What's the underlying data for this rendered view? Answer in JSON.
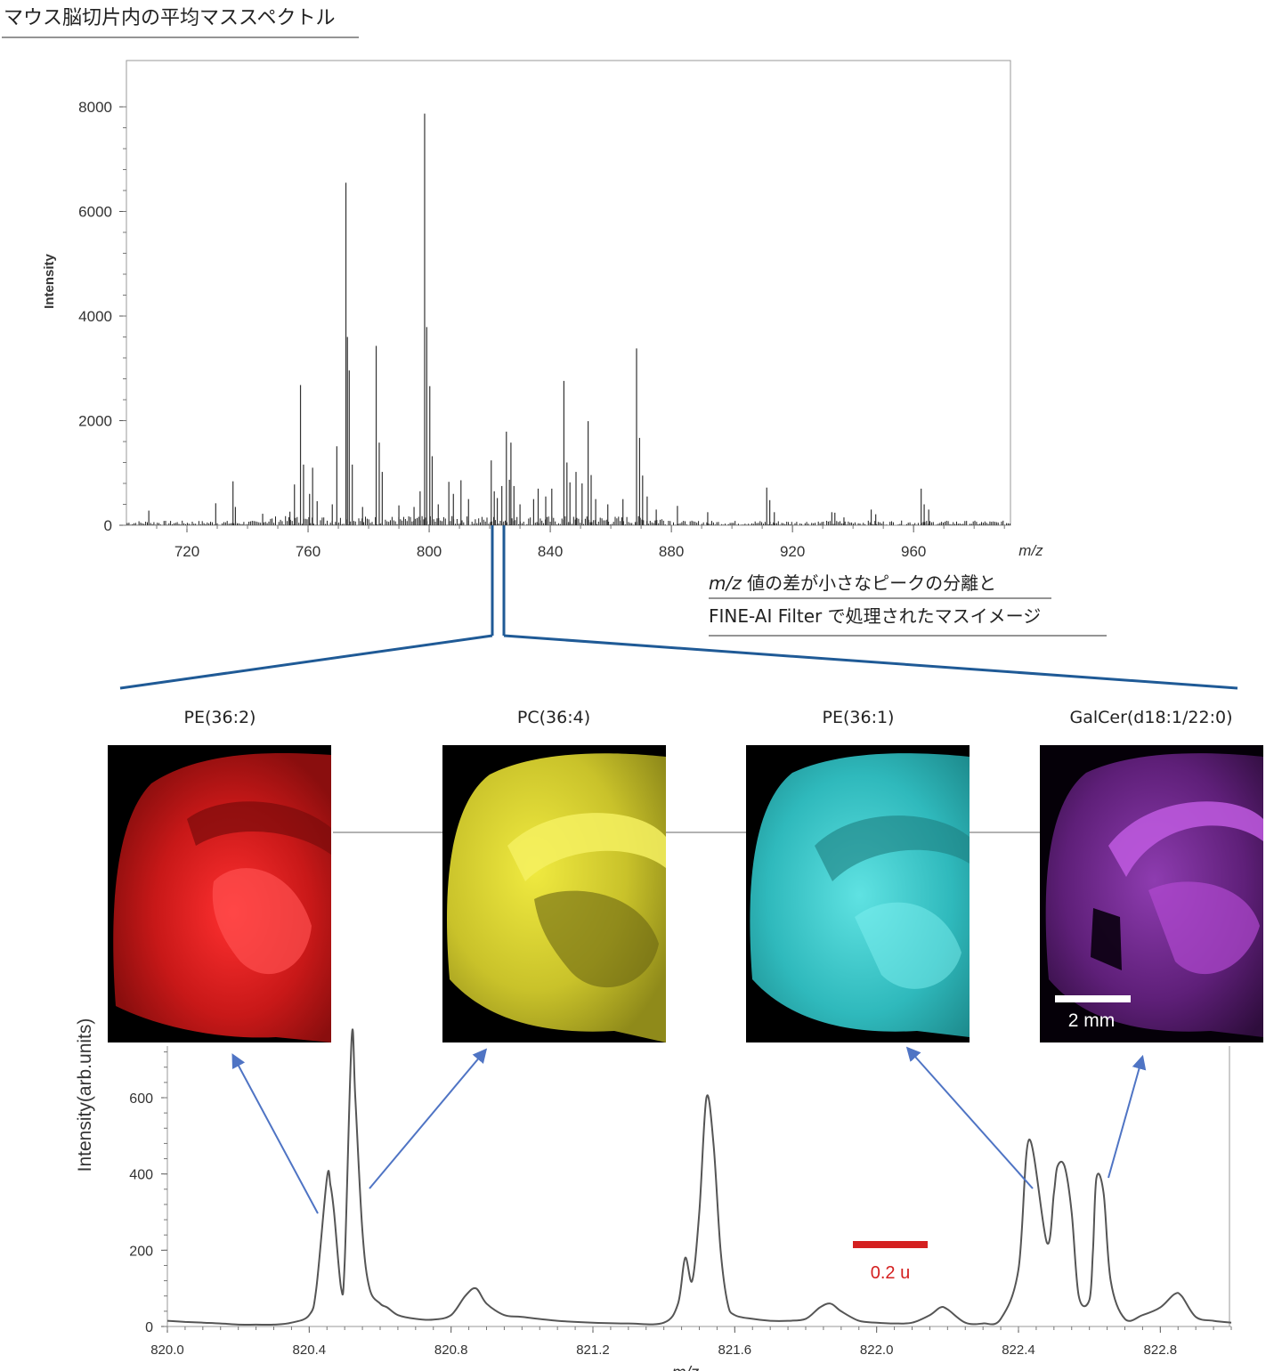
{
  "header": {
    "title": "マウス脳切片内の平均マススペクトル"
  },
  "note": {
    "line1_mz": "m/z",
    "line1_rest": " 値の差が小さなピークの分離と",
    "line2": "FINE-AI Filter で処理されたマスイメージ"
  },
  "chart_data": [
    {
      "type": "line",
      "ylabel": "Intensity",
      "xlabel": "m/z",
      "xlim": [
        700,
        992
      ],
      "ylim": [
        0,
        8000
      ],
      "xticks": [
        {
          "value": 720,
          "label": "720"
        },
        {
          "value": 760,
          "label": "760"
        },
        {
          "value": 800,
          "label": "800"
        },
        {
          "value": 840,
          "label": "840"
        },
        {
          "value": 880,
          "label": "880"
        },
        {
          "value": 920,
          "label": "920"
        },
        {
          "value": 960,
          "label": "960"
        }
      ],
      "yticks": [
        {
          "value": 0,
          "label": "0"
        },
        {
          "value": 2000,
          "label": "2000"
        },
        {
          "value": 4000,
          "label": "4000"
        },
        {
          "value": 6000,
          "label": "6000"
        },
        {
          "value": 8000,
          "label": "8000"
        }
      ],
      "peaks": [
        [
          707.4,
          280
        ],
        [
          729.5,
          420
        ],
        [
          735.2,
          840
        ],
        [
          736.0,
          350
        ],
        [
          745.0,
          220
        ],
        [
          754.0,
          260
        ],
        [
          755.5,
          780
        ],
        [
          757.5,
          2680
        ],
        [
          758.5,
          1160
        ],
        [
          760.5,
          600
        ],
        [
          761.5,
          1100
        ],
        [
          763.0,
          460
        ],
        [
          768.0,
          400
        ],
        [
          769.5,
          1510
        ],
        [
          772.5,
          6550
        ],
        [
          773.0,
          3600
        ],
        [
          773.6,
          2960
        ],
        [
          774.6,
          1160
        ],
        [
          778.0,
          350
        ],
        [
          782.5,
          3430
        ],
        [
          783.5,
          1580
        ],
        [
          784.5,
          1020
        ],
        [
          790.0,
          380
        ],
        [
          795.0,
          350
        ],
        [
          797.0,
          650
        ],
        [
          798.5,
          7870
        ],
        [
          799.2,
          3790
        ],
        [
          800.2,
          2660
        ],
        [
          801.0,
          1320
        ],
        [
          803.0,
          400
        ],
        [
          806.5,
          830
        ],
        [
          808.0,
          600
        ],
        [
          810.5,
          860
        ],
        [
          813.0,
          500
        ],
        [
          820.5,
          1240
        ],
        [
          821.5,
          650
        ],
        [
          822.5,
          520
        ],
        [
          824.0,
          750
        ],
        [
          825.5,
          1790
        ],
        [
          826.5,
          870
        ],
        [
          827.0,
          1580
        ],
        [
          828.0,
          750
        ],
        [
          830.0,
          400
        ],
        [
          834.5,
          500
        ],
        [
          836.0,
          700
        ],
        [
          838.5,
          550
        ],
        [
          840.5,
          700
        ],
        [
          844.5,
          2760
        ],
        [
          845.5,
          1200
        ],
        [
          846.5,
          820
        ],
        [
          848.5,
          1020
        ],
        [
          850.5,
          800
        ],
        [
          852.5,
          1990
        ],
        [
          853.5,
          960
        ],
        [
          855.0,
          500
        ],
        [
          859.0,
          400
        ],
        [
          864.0,
          500
        ],
        [
          868.5,
          3380
        ],
        [
          869.5,
          1670
        ],
        [
          870.5,
          950
        ],
        [
          872.0,
          550
        ],
        [
          875.0,
          300
        ],
        [
          882.0,
          370
        ],
        [
          892.0,
          250
        ],
        [
          911.5,
          720
        ],
        [
          912.5,
          480
        ],
        [
          914.0,
          250
        ],
        [
          933.0,
          250
        ],
        [
          934.0,
          240
        ],
        [
          937.0,
          150
        ],
        [
          946.0,
          300
        ],
        [
          947.5,
          210
        ],
        [
          962.5,
          700
        ],
        [
          963.5,
          400
        ],
        [
          965.0,
          300
        ]
      ]
    },
    {
      "type": "line",
      "ylabel": "Intensity(arb.units)",
      "xlabel": "m/z",
      "xlim": [
        820.0,
        823.0
      ],
      "ylim": [
        0,
        760
      ],
      "xticks": [
        {
          "value": 820.0,
          "label": "820.0"
        },
        {
          "value": 820.4,
          "label": "820.4"
        },
        {
          "value": 820.8,
          "label": "820.8"
        },
        {
          "value": 821.2,
          "label": "821.2"
        },
        {
          "value": 821.6,
          "label": "821.6"
        },
        {
          "value": 822.0,
          "label": "822.0"
        },
        {
          "value": 822.4,
          "label": "822.4"
        },
        {
          "value": 822.8,
          "label": "822.8"
        }
      ],
      "yticks": [
        {
          "value": 0,
          "label": "0"
        },
        {
          "value": 200,
          "label": "200"
        },
        {
          "value": 400,
          "label": "400"
        },
        {
          "value": 600,
          "label": "600"
        }
      ],
      "x": [
        820.0,
        820.05,
        820.1,
        820.15,
        820.2,
        820.25,
        820.3,
        820.35,
        820.4,
        820.42,
        820.45,
        820.46,
        820.47,
        820.49,
        820.5,
        820.52,
        820.53,
        820.55,
        820.57,
        820.6,
        820.62,
        820.65,
        820.7,
        820.75,
        820.8,
        820.84,
        820.87,
        820.9,
        820.95,
        821.0,
        821.1,
        821.2,
        821.3,
        821.4,
        821.44,
        821.46,
        821.48,
        821.5,
        821.52,
        821.54,
        821.56,
        821.58,
        821.6,
        821.65,
        821.7,
        821.75,
        821.8,
        821.84,
        821.87,
        821.9,
        821.95,
        822.0,
        822.05,
        822.1,
        822.15,
        822.18,
        822.2,
        822.25,
        822.3,
        822.35,
        822.4,
        822.43,
        822.48,
        822.5,
        822.51,
        822.53,
        822.55,
        822.57,
        822.6,
        822.61,
        822.62,
        822.64,
        822.66,
        822.7,
        822.75,
        822.8,
        822.84,
        822.86,
        822.9,
        822.95,
        823.0
      ],
      "y": [
        15,
        12,
        10,
        8,
        5,
        5,
        5,
        10,
        30,
        100,
        390,
        370,
        300,
        100,
        170,
        760,
        600,
        250,
        100,
        60,
        50,
        30,
        20,
        18,
        30,
        80,
        100,
        60,
        30,
        25,
        15,
        10,
        8,
        10,
        60,
        180,
        120,
        300,
        600,
        480,
        200,
        60,
        30,
        20,
        15,
        15,
        20,
        50,
        60,
        40,
        15,
        10,
        8,
        10,
        30,
        50,
        45,
        10,
        8,
        20,
        150,
        490,
        220,
        350,
        420,
        420,
        300,
        80,
        70,
        200,
        390,
        350,
        120,
        20,
        30,
        50,
        85,
        80,
        25,
        15,
        10
      ]
    }
  ],
  "images": [
    {
      "label": "PE(36:2)",
      "color": "#e62020"
    },
    {
      "label": "PC(36:4)",
      "color": "#e0d92a"
    },
    {
      "label": "PE(36:1)",
      "color": "#33c6c8"
    },
    {
      "label": "GalCer(d18:1/22:0)",
      "color": "#a033c8"
    }
  ],
  "scale_bars": {
    "image_bar": "2 mm",
    "mass_bar": "0.2 u"
  }
}
